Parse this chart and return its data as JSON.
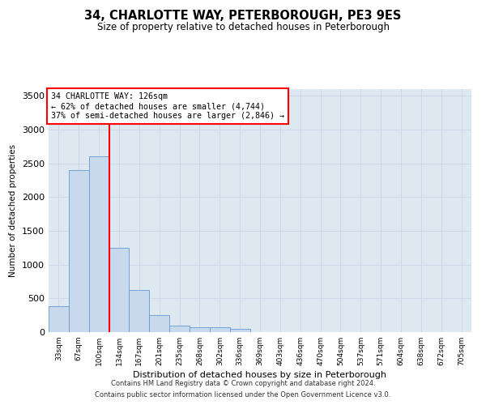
{
  "title": "34, CHARLOTTE WAY, PETERBOROUGH, PE3 9ES",
  "subtitle": "Size of property relative to detached houses in Peterborough",
  "xlabel": "Distribution of detached houses by size in Peterborough",
  "ylabel": "Number of detached properties",
  "footer_line1": "Contains HM Land Registry data © Crown copyright and database right 2024.",
  "footer_line2": "Contains public sector information licensed under the Open Government Licence v3.0.",
  "annotation_title": "34 CHARLOTTE WAY: 126sqm",
  "annotation_line1": "← 62% of detached houses are smaller (4,744)",
  "annotation_line2": "37% of semi-detached houses are larger (2,846) →",
  "bar_color": "#c9d9ed",
  "bar_edge_color": "#6699cc",
  "vline_color": "red",
  "annotation_box_color": "white",
  "annotation_box_edge": "red",
  "grid_color": "#ccd9e8",
  "background_color": "#dde8f0",
  "categories": [
    "33sqm",
    "67sqm",
    "100sqm",
    "134sqm",
    "167sqm",
    "201sqm",
    "235sqm",
    "268sqm",
    "302sqm",
    "336sqm",
    "369sqm",
    "403sqm",
    "436sqm",
    "470sqm",
    "504sqm",
    "537sqm",
    "571sqm",
    "604sqm",
    "638sqm",
    "672sqm",
    "705sqm"
  ],
  "values": [
    390,
    2400,
    2600,
    1250,
    630,
    250,
    100,
    70,
    70,
    50,
    5,
    0,
    0,
    0,
    0,
    0,
    0,
    0,
    0,
    0,
    0
  ],
  "vline_x_index": 2.5,
  "ylim": [
    0,
    3600
  ],
  "yticks": [
    0,
    500,
    1000,
    1500,
    2000,
    2500,
    3000,
    3500
  ]
}
